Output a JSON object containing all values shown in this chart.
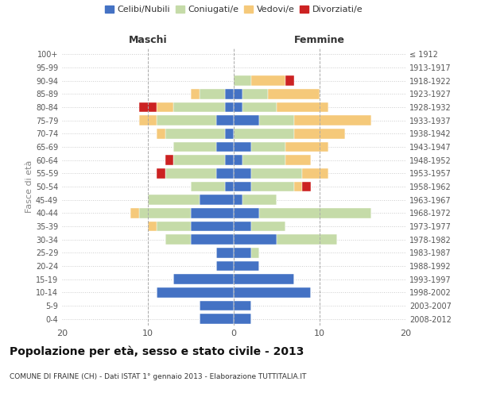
{
  "age_groups": [
    "100+",
    "95-99",
    "90-94",
    "85-89",
    "80-84",
    "75-79",
    "70-74",
    "65-69",
    "60-64",
    "55-59",
    "50-54",
    "45-49",
    "40-44",
    "35-39",
    "30-34",
    "25-29",
    "20-24",
    "15-19",
    "10-14",
    "5-9",
    "0-4"
  ],
  "birth_years": [
    "≤ 1912",
    "1913-1917",
    "1918-1922",
    "1923-1927",
    "1928-1932",
    "1933-1937",
    "1938-1942",
    "1943-1947",
    "1948-1952",
    "1953-1957",
    "1958-1962",
    "1963-1967",
    "1968-1972",
    "1973-1977",
    "1978-1982",
    "1983-1987",
    "1988-1992",
    "1993-1997",
    "1998-2002",
    "2003-2007",
    "2008-2012"
  ],
  "male": {
    "celibi": [
      0,
      0,
      0,
      1,
      1,
      2,
      1,
      2,
      1,
      2,
      1,
      4,
      5,
      5,
      5,
      2,
      2,
      7,
      9,
      4,
      4
    ],
    "coniugati": [
      0,
      0,
      0,
      3,
      6,
      7,
      7,
      5,
      6,
      6,
      4,
      6,
      6,
      4,
      3,
      0,
      0,
      0,
      0,
      0,
      0
    ],
    "vedovi": [
      0,
      0,
      0,
      1,
      2,
      2,
      1,
      0,
      0,
      0,
      0,
      0,
      1,
      1,
      0,
      0,
      0,
      0,
      0,
      0,
      0
    ],
    "divorziati": [
      0,
      0,
      0,
      0,
      2,
      0,
      0,
      0,
      1,
      1,
      0,
      0,
      0,
      0,
      0,
      0,
      0,
      0,
      0,
      0,
      0
    ]
  },
  "female": {
    "nubili": [
      0,
      0,
      0,
      1,
      1,
      3,
      0,
      2,
      1,
      2,
      2,
      1,
      3,
      2,
      5,
      2,
      3,
      7,
      9,
      2,
      2
    ],
    "coniugate": [
      0,
      0,
      2,
      3,
      4,
      4,
      7,
      4,
      5,
      6,
      5,
      4,
      13,
      4,
      7,
      1,
      0,
      0,
      0,
      0,
      0
    ],
    "vedove": [
      0,
      0,
      4,
      6,
      6,
      9,
      6,
      5,
      3,
      3,
      1,
      0,
      0,
      0,
      0,
      0,
      0,
      0,
      0,
      0,
      0
    ],
    "divorziate": [
      0,
      0,
      1,
      0,
      0,
      0,
      0,
      0,
      0,
      0,
      1,
      0,
      0,
      0,
      0,
      0,
      0,
      0,
      0,
      0,
      0
    ]
  },
  "colors": {
    "celibi": "#4472C4",
    "coniugati": "#c5dba8",
    "vedovi": "#f5c97a",
    "divorziati": "#cc2222"
  },
  "title": "Popolazione per età, sesso e stato civile - 2013",
  "subtitle": "COMUNE DI FRAINE (CH) - Dati ISTAT 1° gennaio 2013 - Elaborazione TUTTITALIA.IT",
  "xlabel_left": "Maschi",
  "xlabel_right": "Femmine",
  "ylabel_left": "Fasce di età",
  "xlim": 20,
  "legend_labels": [
    "Celibi/Nubili",
    "Coniugati/e",
    "Vedovi/e",
    "Divorziati/e"
  ]
}
